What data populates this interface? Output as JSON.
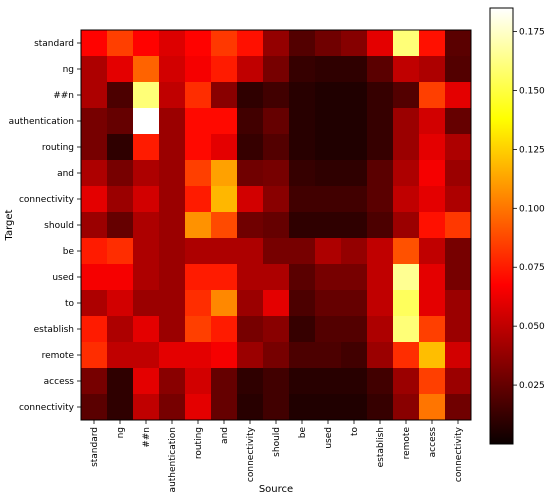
{
  "chart_data": {
    "type": "heatmap",
    "title": "",
    "xlabel": "Source",
    "ylabel": "Target",
    "x_categories": [
      "standard",
      "ng",
      "##n",
      "authentication",
      "routing",
      "and",
      "connectivity",
      "should",
      "be",
      "used",
      "to",
      "establish",
      "remote",
      "access",
      "connectivity"
    ],
    "y_categories": [
      "standard",
      "ng",
      "##n",
      "authentication",
      "routing",
      "and",
      "connectivity",
      "should",
      "be",
      "used",
      "to",
      "establish",
      "remote",
      "access",
      "connectivity"
    ],
    "values": [
      [
        0.068,
        0.085,
        0.068,
        0.058,
        0.068,
        0.083,
        0.072,
        0.038,
        0.02,
        0.028,
        0.034,
        0.06,
        0.16,
        0.072,
        0.022
      ],
      [
        0.045,
        0.06,
        0.095,
        0.055,
        0.065,
        0.075,
        0.05,
        0.03,
        0.012,
        0.01,
        0.01,
        0.022,
        0.05,
        0.045,
        0.02
      ],
      [
        0.045,
        0.018,
        0.16,
        0.05,
        0.08,
        0.035,
        0.01,
        0.015,
        0.008,
        0.006,
        0.006,
        0.012,
        0.02,
        0.085,
        0.06
      ],
      [
        0.03,
        0.025,
        0.185,
        0.04,
        0.07,
        0.07,
        0.015,
        0.025,
        0.008,
        0.006,
        0.006,
        0.012,
        0.04,
        0.055,
        0.025
      ],
      [
        0.03,
        0.01,
        0.075,
        0.04,
        0.07,
        0.06,
        0.012,
        0.02,
        0.008,
        0.006,
        0.006,
        0.012,
        0.04,
        0.06,
        0.045
      ],
      [
        0.045,
        0.03,
        0.045,
        0.04,
        0.085,
        0.112,
        0.028,
        0.03,
        0.012,
        0.01,
        0.01,
        0.022,
        0.045,
        0.065,
        0.04
      ],
      [
        0.06,
        0.04,
        0.055,
        0.04,
        0.075,
        0.118,
        0.055,
        0.035,
        0.015,
        0.015,
        0.015,
        0.022,
        0.05,
        0.06,
        0.045
      ],
      [
        0.04,
        0.025,
        0.045,
        0.04,
        0.108,
        0.088,
        0.028,
        0.025,
        0.01,
        0.01,
        0.01,
        0.018,
        0.04,
        0.072,
        0.083
      ],
      [
        0.075,
        0.08,
        0.045,
        0.04,
        0.045,
        0.045,
        0.045,
        0.03,
        0.03,
        0.045,
        0.038,
        0.05,
        0.09,
        0.05,
        0.03
      ],
      [
        0.065,
        0.065,
        0.045,
        0.04,
        0.075,
        0.075,
        0.045,
        0.045,
        0.022,
        0.03,
        0.03,
        0.05,
        0.165,
        0.06,
        0.03
      ],
      [
        0.045,
        0.055,
        0.04,
        0.04,
        0.08,
        0.105,
        0.04,
        0.06,
        0.018,
        0.025,
        0.025,
        0.05,
        0.155,
        0.06,
        0.04
      ],
      [
        0.075,
        0.045,
        0.06,
        0.04,
        0.085,
        0.075,
        0.03,
        0.035,
        0.012,
        0.02,
        0.02,
        0.045,
        0.16,
        0.085,
        0.04
      ],
      [
        0.08,
        0.05,
        0.05,
        0.06,
        0.06,
        0.065,
        0.04,
        0.03,
        0.018,
        0.018,
        0.015,
        0.04,
        0.08,
        0.12,
        0.055
      ],
      [
        0.03,
        0.01,
        0.06,
        0.035,
        0.055,
        0.025,
        0.01,
        0.015,
        0.008,
        0.008,
        0.008,
        0.015,
        0.04,
        0.085,
        0.04
      ],
      [
        0.022,
        0.01,
        0.05,
        0.03,
        0.06,
        0.025,
        0.008,
        0.015,
        0.006,
        0.006,
        0.006,
        0.012,
        0.035,
        0.1,
        0.028
      ]
    ],
    "colormap": "hot",
    "vmin": 0.0,
    "vmax": 0.185,
    "colorbar_ticks": [
      "0.025",
      "0.050",
      "0.075",
      "0.100",
      "0.125",
      "0.150",
      "0.175"
    ],
    "colorbar_tick_values": [
      0.025,
      0.05,
      0.075,
      0.1,
      0.125,
      0.15,
      0.175
    ]
  }
}
